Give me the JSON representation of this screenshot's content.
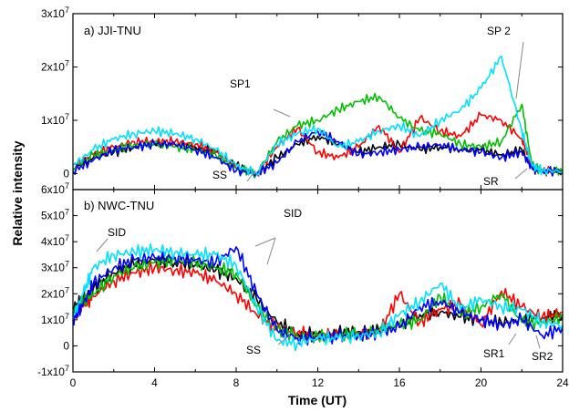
{
  "chart_data": {
    "type": "line",
    "xlabel": "Time (UT)",
    "ylabel": "Relative intensity",
    "xlim": [
      0,
      24
    ],
    "x_ticks": [
      "0",
      "4",
      "8",
      "12",
      "16",
      "20",
      "24"
    ],
    "grid": false,
    "legend": "none",
    "series_colors": [
      "#000000",
      "#ff0000",
      "#00c000",
      "#0000ff",
      "#00e0ff"
    ],
    "panels": [
      {
        "label": "a)  JJI-TNU",
        "ylim": [
          -3000000.0,
          30000000.0
        ],
        "y_tick_values": [
          0,
          10000000.0,
          20000000.0,
          30000000.0
        ],
        "y_tick_labels": [
          {
            "base": "0",
            "exp": ""
          },
          {
            "base": "1x10",
            "exp": "7"
          },
          {
            "base": "2x10",
            "exp": "7"
          },
          {
            "base": "3x10",
            "exp": "7"
          }
        ],
        "x": [
          0,
          1,
          2,
          3,
          4,
          5,
          6,
          7,
          8,
          9,
          10,
          11,
          12,
          13,
          14,
          15,
          16,
          17,
          18,
          19,
          20,
          21,
          22,
          22.5,
          23,
          24
        ],
        "series": [
          {
            "values": [
              0.1,
              0.3,
              0.4,
              0.5,
              0.55,
              0.55,
              0.5,
              0.4,
              0.15,
              0.0,
              0.3,
              0.55,
              0.7,
              0.55,
              0.4,
              0.5,
              0.55,
              0.45,
              0.5,
              0.45,
              0.45,
              0.35,
              0.45,
              0.1,
              0.05,
              0.05
            ]
          },
          {
            "values": [
              0.15,
              0.35,
              0.5,
              0.6,
              0.6,
              0.6,
              0.55,
              0.4,
              0.1,
              0.0,
              0.5,
              0.85,
              0.4,
              0.3,
              0.5,
              0.9,
              0.4,
              1.05,
              0.8,
              0.7,
              1.1,
              1.0,
              0.65,
              0.15,
              0.05,
              0.05
            ]
          },
          {
            "values": [
              0.1,
              0.35,
              0.45,
              0.55,
              0.55,
              0.5,
              0.45,
              0.35,
              0.1,
              0.0,
              0.6,
              0.9,
              1.0,
              1.2,
              1.35,
              1.45,
              1.05,
              0.8,
              0.75,
              0.55,
              0.5,
              0.6,
              1.3,
              0.15,
              0.05,
              0.05
            ]
          },
          {
            "values": [
              0.05,
              0.25,
              0.45,
              0.5,
              0.55,
              0.55,
              0.45,
              0.3,
              0.05,
              0.0,
              0.2,
              0.6,
              0.8,
              0.6,
              0.35,
              0.4,
              0.45,
              0.5,
              0.55,
              0.45,
              0.4,
              0.3,
              0.4,
              0.1,
              0.05,
              0.05
            ]
          },
          {
            "values": [
              0.15,
              0.45,
              0.65,
              0.75,
              0.8,
              0.75,
              0.65,
              0.45,
              0.15,
              0.0,
              0.55,
              0.75,
              0.85,
              0.5,
              0.6,
              0.8,
              0.9,
              0.7,
              1.0,
              1.2,
              1.6,
              2.2,
              0.8,
              0.15,
              0.05,
              0.05
            ]
          }
        ],
        "annotations": [
          "SP1",
          "SP 2",
          "SS",
          "SR"
        ]
      },
      {
        "label": "b)  NWC-TNU",
        "ylim": [
          -10000000.0,
          60000000.0
        ],
        "y_tick_values": [
          -10000000.0,
          0,
          10000000.0,
          20000000.0,
          30000000.0,
          40000000.0,
          50000000.0,
          60000000.0
        ],
        "y_tick_labels": [
          {
            "base": "-1x10",
            "exp": "7"
          },
          {
            "base": "0",
            "exp": ""
          },
          {
            "base": "1x10",
            "exp": "7"
          },
          {
            "base": "2x10",
            "exp": "7"
          },
          {
            "base": "3x10",
            "exp": "7"
          },
          {
            "base": "4x10",
            "exp": "7"
          },
          {
            "base": "5x10",
            "exp": "7"
          },
          {
            "base": "6x10",
            "exp": "7"
          }
        ],
        "x": [
          0,
          0.5,
          1,
          2,
          3,
          4,
          5,
          6,
          7,
          8,
          9,
          10,
          11,
          12,
          13,
          14,
          15,
          16,
          17,
          18,
          19,
          20,
          21,
          22,
          23,
          24
        ],
        "series": [
          {
            "values": [
              1.5,
              1.8,
              2.2,
              2.8,
              3.1,
              3.3,
              3.2,
              3.1,
              2.9,
              2.6,
              1.8,
              0.9,
              0.5,
              0.45,
              0.5,
              0.55,
              0.6,
              0.8,
              1.2,
              1.3,
              1.1,
              1.0,
              0.9,
              1.0,
              1.1,
              1.2
            ]
          },
          {
            "values": [
              1.2,
              1.5,
              1.9,
              2.5,
              2.8,
              3.0,
              2.9,
              2.8,
              2.5,
              2.0,
              1.2,
              0.7,
              0.5,
              0.4,
              0.4,
              0.5,
              0.5,
              2.0,
              0.9,
              1.4,
              1.6,
              0.8,
              2.1,
              1.5,
              1.1,
              1.3
            ]
          },
          {
            "values": [
              1.3,
              1.7,
              2.0,
              2.7,
              3.0,
              3.2,
              3.3,
              3.2,
              3.0,
              2.8,
              1.5,
              0.6,
              0.4,
              0.35,
              0.4,
              0.5,
              0.6,
              0.8,
              1.0,
              1.9,
              1.2,
              1.5,
              2.0,
              0.9,
              0.9,
              1.1
            ]
          },
          {
            "values": [
              1.0,
              1.6,
              2.4,
              3.0,
              3.3,
              3.4,
              3.4,
              3.3,
              3.2,
              3.8,
              2.0,
              0.6,
              0.3,
              0.3,
              0.35,
              0.4,
              0.5,
              0.7,
              1.5,
              1.7,
              1.3,
              1.0,
              0.8,
              1.0,
              0.4,
              0.7
            ]
          },
          {
            "values": [
              1.1,
              2.0,
              3.0,
              3.5,
              3.6,
              3.7,
              3.6,
              3.5,
              3.5,
              3.1,
              1.5,
              0.2,
              0.1,
              0.3,
              0.3,
              0.4,
              0.5,
              1.2,
              1.7,
              2.4,
              1.4,
              1.8,
              1.5,
              1.4,
              0.9,
              0.8
            ]
          }
        ],
        "annotations": [
          "SID",
          "SID",
          "SS",
          "SR1",
          "SR2"
        ]
      }
    ]
  }
}
